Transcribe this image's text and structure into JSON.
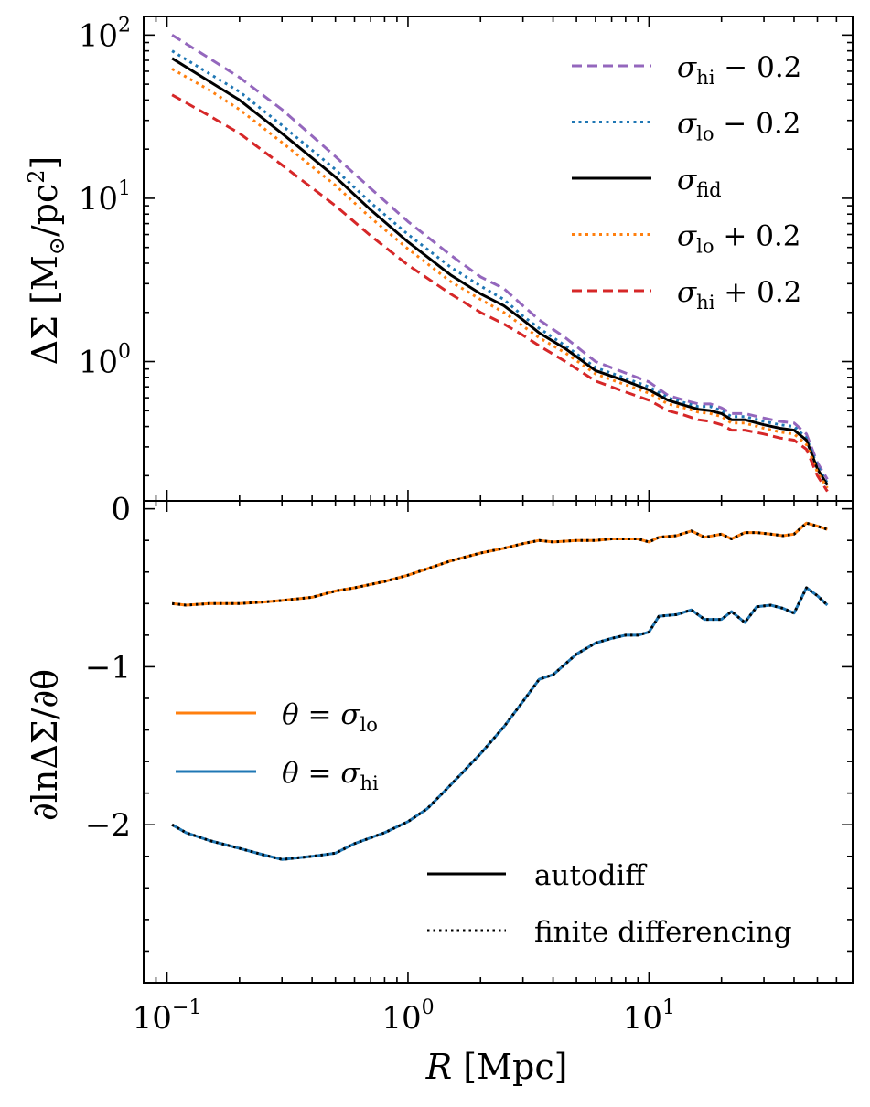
{
  "chart_data": [
    {
      "type": "line",
      "title": "",
      "xlabel": "R [Mpc]",
      "ylabel": "ΔΣ [M⊙/pc²]",
      "xscale": "log",
      "yscale": "log",
      "xlim": [
        0.08,
        70
      ],
      "ylim": [
        0.14,
        130
      ],
      "grid": false,
      "legend_position": "top-right",
      "x_ticks": [
        {
          "value": 0.1,
          "base": "10",
          "exp": "−1"
        },
        {
          "value": 1,
          "base": "10",
          "exp": "0"
        },
        {
          "value": 10,
          "base": "10",
          "exp": "1"
        }
      ],
      "y_ticks": [
        {
          "value": 1,
          "base": "10",
          "exp": "0"
        },
        {
          "value": 10,
          "base": "10",
          "exp": "1"
        },
        {
          "value": 100,
          "base": "10",
          "exp": "2"
        }
      ],
      "x": [
        0.105,
        0.15,
        0.2,
        0.3,
        0.5,
        0.7,
        1.0,
        1.5,
        2.0,
        2.5,
        3.0,
        3.5,
        4.5,
        6.0,
        8.0,
        10.0,
        12.0,
        14.0,
        16.0,
        18.0,
        20.0,
        22.0,
        25.0,
        30.0,
        35.0,
        40.0,
        45.0,
        50.0,
        55.0
      ],
      "series": [
        {
          "name": "σ_hi − 0.2",
          "label": "σhi − 0.2",
          "color": "#9467bd",
          "dash": "dashed",
          "values": [
            100,
            72,
            55,
            35,
            18,
            11.5,
            7.2,
            4.5,
            3.3,
            2.8,
            2.2,
            1.8,
            1.4,
            1.0,
            0.85,
            0.75,
            0.62,
            0.58,
            0.55,
            0.55,
            0.52,
            0.48,
            0.48,
            0.45,
            0.43,
            0.42,
            0.36,
            0.24,
            0.19
          ]
        },
        {
          "name": "σ_lo − 0.2",
          "label": "σlo − 0.2",
          "color": "#1f77b4",
          "dash": "dotted",
          "values": [
            80,
            58,
            45,
            28,
            15,
            9.4,
            6.0,
            3.8,
            2.9,
            2.4,
            1.9,
            1.6,
            1.25,
            0.92,
            0.79,
            0.7,
            0.6,
            0.56,
            0.53,
            0.53,
            0.5,
            0.46,
            0.46,
            0.43,
            0.41,
            0.4,
            0.34,
            0.23,
            0.18
          ]
        },
        {
          "name": "σ_fid",
          "label": "σfid",
          "color": "#000000",
          "dash": "solid",
          "values": [
            72,
            52,
            40,
            25,
            13.5,
            8.5,
            5.4,
            3.4,
            2.6,
            2.2,
            1.8,
            1.5,
            1.2,
            0.88,
            0.76,
            0.67,
            0.58,
            0.54,
            0.51,
            0.5,
            0.48,
            0.44,
            0.44,
            0.41,
            0.39,
            0.38,
            0.33,
            0.22,
            0.175
          ]
        },
        {
          "name": "σ_lo + 0.2",
          "label": "σlo + 0.2",
          "color": "#ff7f0e",
          "dash": "dotted",
          "values": [
            62,
            46,
            35,
            22,
            12,
            7.6,
            4.9,
            3.1,
            2.4,
            2.0,
            1.65,
            1.4,
            1.13,
            0.84,
            0.72,
            0.64,
            0.55,
            0.52,
            0.49,
            0.48,
            0.46,
            0.42,
            0.42,
            0.39,
            0.37,
            0.36,
            0.31,
            0.21,
            0.168
          ]
        },
        {
          "name": "σ_hi + 0.2",
          "label": "σhi + 0.2",
          "color": "#d62728",
          "dash": "dashed",
          "values": [
            43,
            32,
            25,
            16,
            9.0,
            5.9,
            3.9,
            2.6,
            2.0,
            1.7,
            1.45,
            1.25,
            1.0,
            0.76,
            0.65,
            0.58,
            0.5,
            0.47,
            0.44,
            0.43,
            0.41,
            0.38,
            0.38,
            0.36,
            0.34,
            0.33,
            0.29,
            0.2,
            0.16
          ]
        }
      ]
    },
    {
      "type": "line",
      "title": "",
      "xlabel": "R [Mpc]",
      "ylabel": "∂lnΔΣ/∂θ",
      "xscale": "log",
      "yscale": "linear",
      "xlim": [
        0.08,
        70
      ],
      "ylim": [
        -3.0,
        0.05
      ],
      "grid": false,
      "legend_position": "middle-left and bottom-right",
      "y_ticks": [
        {
          "value": 0,
          "label": "0"
        },
        {
          "value": -1,
          "label": "−1"
        },
        {
          "value": -2,
          "label": "−2"
        }
      ],
      "x": [
        0.105,
        0.12,
        0.15,
        0.2,
        0.25,
        0.3,
        0.4,
        0.5,
        0.6,
        0.8,
        1.0,
        1.2,
        1.5,
        2.0,
        2.5,
        3.0,
        3.5,
        4.0,
        5.0,
        6.0,
        7.0,
        8.0,
        9.0,
        10.0,
        11.0,
        13.0,
        15.0,
        17.0,
        20.0,
        22.0,
        25.0,
        28.0,
        32.0,
        36.0,
        40.0,
        45.0,
        50.0,
        55.0
      ],
      "series": [
        {
          "name": "θ = σ_lo",
          "label": "θ = σlo",
          "color": "#ff7f0e",
          "method": "autodiff",
          "values": [
            -0.6,
            -0.61,
            -0.6,
            -0.6,
            -0.59,
            -0.58,
            -0.56,
            -0.52,
            -0.5,
            -0.46,
            -0.42,
            -0.38,
            -0.33,
            -0.28,
            -0.25,
            -0.22,
            -0.2,
            -0.21,
            -0.2,
            -0.2,
            -0.19,
            -0.19,
            -0.19,
            -0.21,
            -0.18,
            -0.17,
            -0.14,
            -0.18,
            -0.16,
            -0.19,
            -0.15,
            -0.15,
            -0.16,
            -0.17,
            -0.16,
            -0.09,
            -0.11,
            -0.13
          ]
        },
        {
          "name": "θ = σ_hi",
          "label": "θ = σhi",
          "color": "#1f77b4",
          "method": "autodiff",
          "values": [
            -2.0,
            -2.05,
            -2.1,
            -2.15,
            -2.19,
            -2.22,
            -2.2,
            -2.18,
            -2.12,
            -2.05,
            -1.98,
            -1.9,
            -1.75,
            -1.55,
            -1.38,
            -1.22,
            -1.08,
            -1.05,
            -0.92,
            -0.85,
            -0.82,
            -0.8,
            -0.8,
            -0.78,
            -0.68,
            -0.67,
            -0.64,
            -0.7,
            -0.7,
            -0.65,
            -0.72,
            -0.62,
            -0.61,
            -0.63,
            -0.66,
            -0.5,
            -0.55,
            -0.61
          ]
        }
      ],
      "method_legend": [
        {
          "label": "autodiff",
          "style": "solid"
        },
        {
          "label": "finite differencing",
          "style": "dotted"
        }
      ]
    }
  ]
}
